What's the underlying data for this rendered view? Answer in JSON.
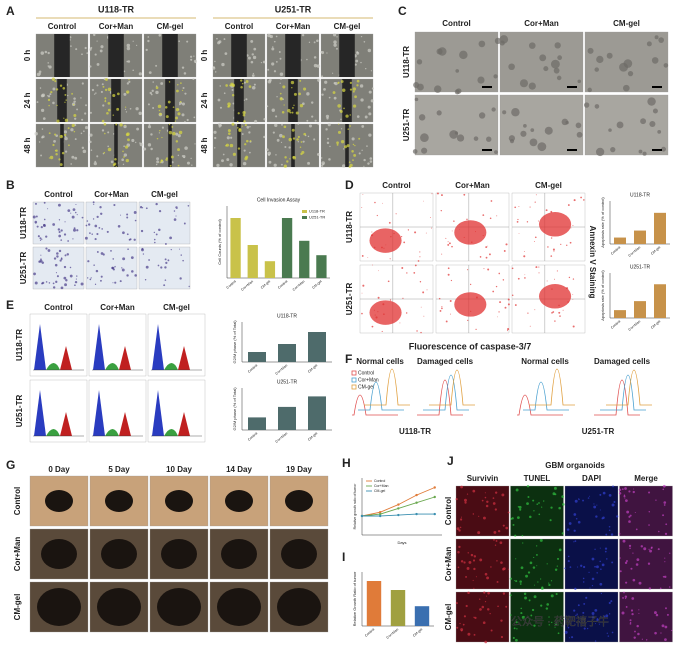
{
  "panel_a": {
    "label": "A",
    "groups": [
      "U118-TR",
      "U251-TR"
    ],
    "columns": [
      "Control",
      "Cor+Man",
      "CM-gel"
    ],
    "rows": [
      "0 h",
      "24 h",
      "48 h"
    ]
  },
  "panel_b": {
    "label": "B",
    "columns": [
      "Control",
      "Cor+Man",
      "CM-gel"
    ],
    "rows": [
      "U118-TR",
      "U251-TR"
    ]
  },
  "panel_c": {
    "label": "C",
    "columns": [
      "Control",
      "Cor+Man",
      "CM-gel"
    ],
    "rows": [
      "U118-TR",
      "U251-TR"
    ]
  },
  "panel_d": {
    "label": "D",
    "columns": [
      "Control",
      "Cor+Man",
      "CM-gel"
    ],
    "rows": [
      "U118-TR",
      "U251-TR"
    ],
    "x_label": "Fluorescence of caspase-3/7",
    "side_label": "Annexin V Staining"
  },
  "panel_e": {
    "label": "E",
    "columns": [
      "Control",
      "Cor+Man",
      "CM-gel"
    ],
    "rows": [
      "U118-TR",
      "U251-TR"
    ]
  },
  "panel_f": {
    "label": "F",
    "legend": [
      "Control",
      "Cor+Man",
      "CM-gel"
    ],
    "headers": [
      "Normal cells",
      "Damaged cells",
      "Normal cells",
      "Damaged cells"
    ],
    "groups": [
      "U118-TR",
      "U251-TR"
    ]
  },
  "panel_g": {
    "label": "G",
    "columns": [
      "0 Day",
      "5 Day",
      "10 Day",
      "14 Day",
      "19 Day"
    ],
    "rows": [
      "Control",
      "Cor+Man",
      "CM-gel"
    ]
  },
  "panel_h": {
    "label": "H"
  },
  "panel_i": {
    "label": "I"
  },
  "panel_j": {
    "label": "J",
    "title": "GBM organoids",
    "columns": [
      "Survivin",
      "TUNEL",
      "DAPI",
      "Merge"
    ],
    "rows": [
      "Control",
      "Cor+Man",
      "CM-gel"
    ]
  },
  "watermark": "公众号 · 药靶禧子牛",
  "chart_data": [
    {
      "type": "bar",
      "title": "Cell Invasion Assay",
      "y_label": "Cell Counts (% of control)",
      "categories": [
        "Control",
        "Cor+Man",
        "CM-gel"
      ],
      "legend": true,
      "ylim": [
        0,
        120
      ],
      "series": [
        {
          "name": "U118-TR",
          "color": "#c9c24a",
          "values": [
            100,
            55,
            28
          ]
        },
        {
          "name": "U251-TR",
          "color": "#4a7a50",
          "values": [
            100,
            62,
            38
          ]
        }
      ]
    },
    {
      "type": "bar",
      "title": "U118-TR",
      "y_label": "Apoptosis rate (% of control)",
      "categories": [
        "Control",
        "Cor+Man",
        "CM-gel"
      ],
      "ylim": [
        0,
        80
      ],
      "series": [
        {
          "color": "#c7924a",
          "values": [
            12,
            25,
            58
          ]
        }
      ]
    },
    {
      "type": "bar",
      "title": "U251-TR",
      "y_label": "Apoptosis rate (% of control)",
      "categories": [
        "Control",
        "Cor+Man",
        "CM-gel"
      ],
      "ylim": [
        0,
        80
      ],
      "series": [
        {
          "color": "#c7924a",
          "values": [
            14,
            30,
            60
          ]
        }
      ]
    },
    {
      "type": "bar",
      "title": "U118-TR",
      "y_label": "G2/M phase (% of Total)",
      "categories": [
        "Control",
        "Cor+Man",
        "CM-gel"
      ],
      "ylim": [
        0,
        40
      ],
      "series": [
        {
          "color": "#4e6b6b",
          "values": [
            10,
            18,
            30
          ]
        }
      ]
    },
    {
      "type": "bar",
      "title": "U251-TR",
      "y_label": "G2/M phase (% of Total)",
      "categories": [
        "Control",
        "Cor+Man",
        "CM-gel"
      ],
      "ylim": [
        0,
        40
      ],
      "series": [
        {
          "color": "#4e6b6b",
          "values": [
            12,
            22,
            32
          ]
        }
      ]
    },
    {
      "type": "line",
      "x_label": "Days",
      "y_label": "Relative growth ratio of tumor",
      "x": [
        0,
        5,
        10,
        15,
        20
      ],
      "xlim": [
        0,
        22
      ],
      "ylim": [
        0,
        3
      ],
      "legend": true,
      "series": [
        {
          "name": "Control",
          "color": "#e07b39",
          "values": [
            1,
            1.2,
            1.6,
            2.1,
            2.5
          ]
        },
        {
          "name": "Cor+Man",
          "color": "#6aa84f",
          "values": [
            1,
            1.1,
            1.4,
            1.7,
            2.0
          ]
        },
        {
          "name": "CM-gel",
          "color": "#3a8fb0",
          "values": [
            1,
            1.0,
            1.05,
            1.1,
            1.1
          ]
        }
      ]
    },
    {
      "type": "bar",
      "y_label": "Relative Growth Ratio of tumor",
      "categories": [
        "Control",
        "Cor+Man",
        "CM-gel"
      ],
      "ylim": [
        0,
        3
      ],
      "series": [
        {
          "color": "#e07b39",
          "values": [
            2.5,
            null,
            null
          ]
        },
        {
          "color": "#a0a040",
          "values": [
            null,
            2.0,
            null
          ]
        },
        {
          "color": "#3a6fb0",
          "values": [
            null,
            null,
            1.1
          ]
        }
      ]
    }
  ]
}
